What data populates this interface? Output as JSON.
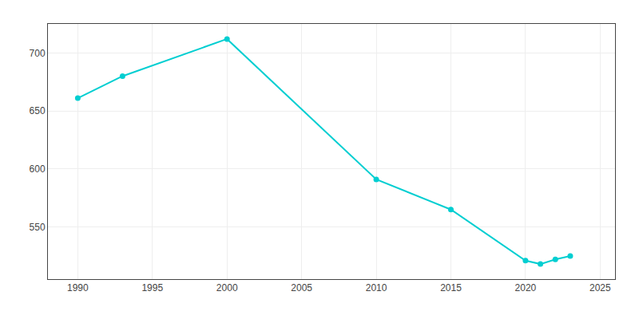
{
  "chart_data": {
    "type": "line",
    "x": [
      1990,
      1993,
      2000,
      2010,
      2015,
      2020,
      2021,
      2022,
      2023
    ],
    "values": [
      661,
      680,
      712,
      591,
      565,
      521,
      518,
      522,
      525
    ],
    "color": "#00CED1",
    "marker": "circle",
    "xlim": [
      1988,
      2026
    ],
    "ylim": [
      505,
      725
    ],
    "xticks": [
      1990,
      1995,
      2000,
      2005,
      2010,
      2015,
      2020,
      2025
    ],
    "yticks": [
      550,
      600,
      650,
      700
    ],
    "grid": true
  }
}
